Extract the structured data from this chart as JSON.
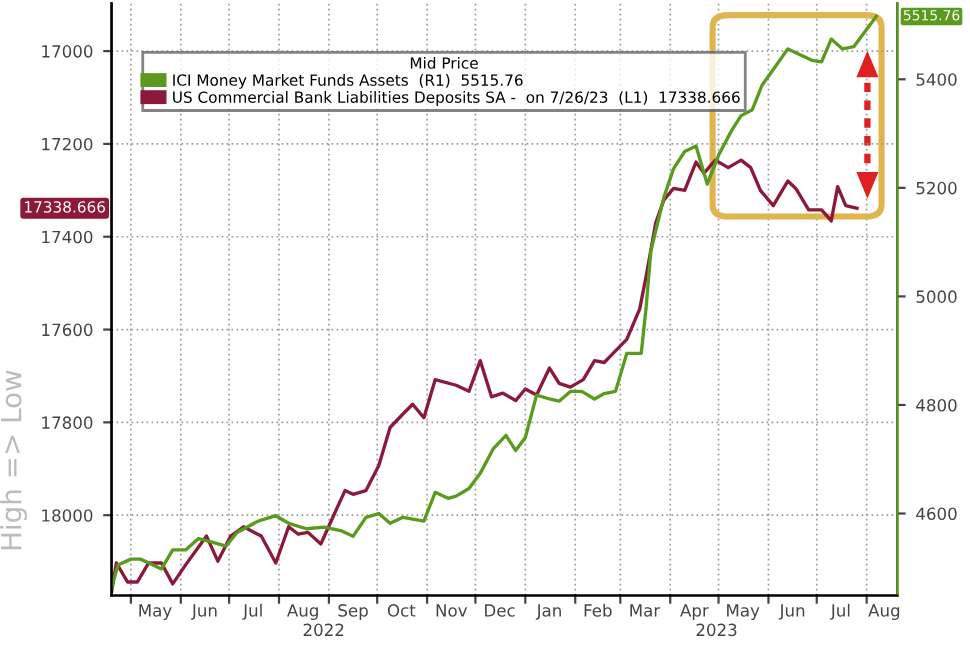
{
  "chart_data": {
    "type": "line",
    "legend_title": "Mid Price",
    "ylabel": "High => Low",
    "series": [
      {
        "name": "ICI Money Market Funds Assets  (R1)  5515.76",
        "color": "#5a9a1e",
        "axis": "y2",
        "x": [
          "2022-04-19",
          "2022-04-23",
          "2022-05-01",
          "2022-05-07",
          "2022-05-20",
          "2022-05-27",
          "2022-06-04",
          "2022-06-12",
          "2022-06-21",
          "2022-06-29",
          "2022-07-06",
          "2022-07-19",
          "2022-07-30",
          "2022-08-07",
          "2022-08-18",
          "2022-08-29",
          "2022-09-09",
          "2022-09-16",
          "2022-09-24",
          "2022-10-02",
          "2022-10-09",
          "2022-10-17",
          "2022-10-30",
          "2022-11-06",
          "2022-11-14",
          "2022-11-19",
          "2022-11-27",
          "2022-12-04",
          "2022-12-12",
          "2022-12-20",
          "2022-12-26",
          "2023-01-01",
          "2023-01-08",
          "2023-01-16",
          "2023-01-22",
          "2023-01-29",
          "2023-02-05",
          "2023-02-13",
          "2023-02-19",
          "2023-02-26",
          "2023-03-05",
          "2023-03-14",
          "2023-03-17",
          "2023-03-20",
          "2023-03-28",
          "2023-04-03",
          "2023-04-10",
          "2023-04-17",
          "2023-04-24",
          "2023-05-01",
          "2023-05-09",
          "2023-05-15",
          "2023-05-22",
          "2023-05-28",
          "2023-06-04",
          "2023-06-13",
          "2023-06-20",
          "2023-06-28",
          "2023-07-04",
          "2023-07-10",
          "2023-07-17",
          "2023-07-24",
          "2023-08-07"
        ],
        "values": [
          4463,
          4505,
          4516,
          4516,
          4498,
          4533,
          4533,
          4554,
          4547,
          4540,
          4565,
          4586,
          4596,
          4582,
          4572,
          4575,
          4568,
          4558,
          4593,
          4600,
          4582,
          4593,
          4586,
          4639,
          4628,
          4632,
          4646,
          4674,
          4719,
          4744,
          4716,
          4740,
          4818,
          4811,
          4807,
          4825,
          4825,
          4811,
          4821,
          4825,
          4895,
          4895,
          4979,
          5084,
          5182,
          5235,
          5267,
          5277,
          5207,
          5260,
          5305,
          5333,
          5344,
          5389,
          5418,
          5456,
          5446,
          5435,
          5432,
          5474,
          5456,
          5460,
          5515.76
        ]
      },
      {
        "name": "US Commercial Bank Liabilities Deposits SA -  on 7/26/23  (L1)  17338.666",
        "color": "#8b1a3a",
        "x": [
          "2022-04-19",
          "2022-04-22",
          "2022-04-29",
          "2022-05-05",
          "2022-05-12",
          "2022-05-20",
          "2022-05-27",
          "2022-06-04",
          "2022-06-17",
          "2022-06-24",
          "2022-07-02",
          "2022-07-10",
          "2022-07-21",
          "2022-07-30",
          "2022-08-07",
          "2022-08-13",
          "2022-08-19",
          "2022-08-27",
          "2022-09-04",
          "2022-09-11",
          "2022-09-16",
          "2022-09-24",
          "2022-10-02",
          "2022-10-09",
          "2022-10-17",
          "2022-10-23",
          "2022-10-30",
          "2022-11-06",
          "2022-11-19",
          "2022-11-27",
          "2022-12-04",
          "2022-12-11",
          "2022-12-18",
          "2022-12-26",
          "2023-01-01",
          "2023-01-08",
          "2023-01-16",
          "2023-01-22",
          "2023-01-29",
          "2023-02-06",
          "2023-02-13",
          "2023-02-19",
          "2023-02-26",
          "2023-03-05",
          "2023-03-13",
          "2023-03-17",
          "2023-03-23",
          "2023-03-28",
          "2023-04-03",
          "2023-04-10",
          "2023-04-17",
          "2023-04-22",
          "2023-04-29",
          "2023-05-07",
          "2023-05-15",
          "2023-05-21",
          "2023-05-27",
          "2023-06-04",
          "2023-06-13",
          "2023-06-18",
          "2023-06-26",
          "2023-07-04",
          "2023-07-10",
          "2023-07-14",
          "2023-07-19",
          "2023-07-26"
        ],
        "values": [
          18165,
          18103,
          18144,
          18144,
          18103,
          18103,
          18148,
          18107,
          18045,
          18099,
          18045,
          18025,
          18045,
          18103,
          18025,
          18041,
          18037,
          18062,
          18000,
          17947,
          17955,
          17947,
          17893,
          17811,
          17782,
          17761,
          17790,
          17708,
          17720,
          17733,
          17667,
          17745,
          17737,
          17753,
          17728,
          17741,
          17683,
          17716,
          17724,
          17708,
          17667,
          17671,
          17646,
          17621,
          17556,
          17486,
          17370,
          17321,
          17296,
          17300,
          17239,
          17263,
          17235,
          17251,
          17235,
          17251,
          17300,
          17333,
          17280,
          17296,
          17342,
          17342,
          17366,
          17292,
          17333,
          17338.666
        ]
      }
    ],
    "xlim": [
      "2022-04-19",
      "2023-08-20"
    ],
    "xticks": [
      {
        "value": "2022-05-01",
        "label": null
      },
      {
        "value": "2022-05-16",
        "label": "May"
      },
      {
        "value": "2022-06-01",
        "label": null
      },
      {
        "value": "2022-06-16",
        "label": "Jun"
      },
      {
        "value": "2022-07-01",
        "label": null
      },
      {
        "value": "2022-07-16",
        "label": "Jul"
      },
      {
        "value": "2022-08-01",
        "label": null
      },
      {
        "value": "2022-08-16",
        "label": "Aug"
      },
      {
        "value": "2022-09-01",
        "label": null
      },
      {
        "value": "2022-09-16",
        "label": "Sep"
      },
      {
        "value": "2022-10-01",
        "label": null
      },
      {
        "value": "2022-10-16",
        "label": "Oct"
      },
      {
        "value": "2022-11-01",
        "label": null
      },
      {
        "value": "2022-11-16",
        "label": "Nov"
      },
      {
        "value": "2022-12-01",
        "label": null
      },
      {
        "value": "2022-12-16",
        "label": "Dec"
      },
      {
        "value": "2023-01-01",
        "label": null
      },
      {
        "value": "2023-01-16",
        "label": "Jan"
      },
      {
        "value": "2023-02-01",
        "label": null
      },
      {
        "value": "2023-02-15",
        "label": "Feb"
      },
      {
        "value": "2023-03-01",
        "label": null
      },
      {
        "value": "2023-03-16",
        "label": "Mar"
      },
      {
        "value": "2023-04-01",
        "label": null
      },
      {
        "value": "2023-04-16",
        "label": "Apr"
      },
      {
        "value": "2023-05-01",
        "label": null
      },
      {
        "value": "2023-05-16",
        "label": "May"
      },
      {
        "value": "2023-06-01",
        "label": null
      },
      {
        "value": "2023-06-16",
        "label": "Jun"
      },
      {
        "value": "2023-07-01",
        "label": null
      },
      {
        "value": "2023-07-16",
        "label": "Jul"
      },
      {
        "value": "2023-08-01",
        "label": null
      },
      {
        "value": "2023-08-12",
        "label": "Aug"
      }
    ],
    "ylim": [
      18173,
      16897
    ],
    "yticks": [
      17000,
      17200,
      17400,
      17600,
      17800,
      18000
    ],
    "y2lim": [
      4449,
      5540
    ],
    "y2ticks": [
      4600,
      4800,
      5000,
      5200,
      5400
    ],
    "grid": true,
    "legend": "top left",
    "annotations": [
      "2022",
      "2023",
      "17338.666",
      "5515.76"
    ]
  }
}
